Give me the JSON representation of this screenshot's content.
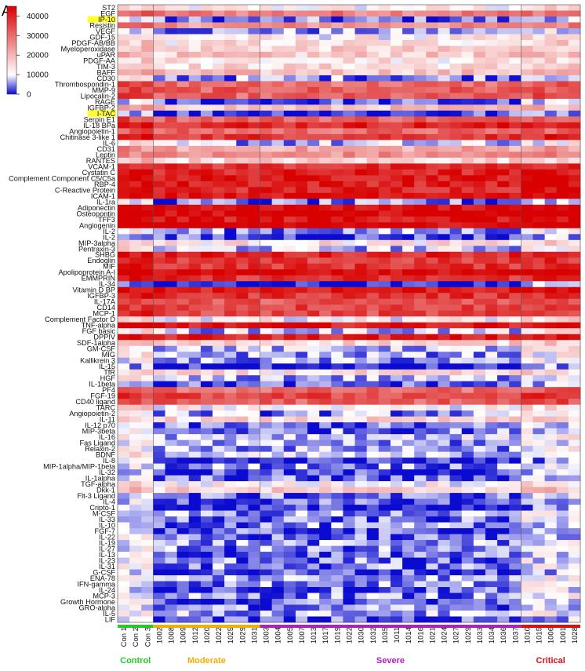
{
  "panel_label": "A",
  "chart_data": {
    "type": "heatmap",
    "title": "",
    "xlabel": "",
    "ylabel": "",
    "colorbar": {
      "ticks": [
        0,
        10000,
        20000,
        30000,
        40000
      ],
      "tick_labels": [
        "0",
        "10000",
        "20000",
        "30000",
        "40000"
      ],
      "range": [
        0,
        45000
      ],
      "colors": {
        "low": "#0a0ad0",
        "mid": "#ffffff",
        "high": "#d80000"
      }
    },
    "rows": [
      "ST2",
      "EGF",
      "IP-10",
      "Resistin",
      "VEGF",
      "GDF-15",
      "PDGF-AB/BB",
      "Myeloperoxidase",
      "uPAR",
      "PDGF-AA",
      "TIM-3",
      "BAFF",
      "CD30",
      "Thrombospondin-1",
      "MMP-9",
      "Lipocalin-2",
      "RAGE",
      "IGFBP-2",
      "I-TAC",
      "Serpin E1",
      "IL-18 BPa",
      "Angiopoietin-1",
      "Chitinase 3-like 1",
      "IL-6",
      "CD31",
      "Leptin",
      "RANTES",
      "VCAM-1",
      "Cystatin C",
      "Complement Component C5/C5a",
      "RBP-4",
      "C-Reactive Protein",
      "ICAM-1",
      "IL-1ra",
      "Adiponectin",
      "Osteopontin",
      "TFF3",
      "Angiogenin",
      "IL-2",
      "IL-2",
      "MIP-3alpha",
      "Pentraxin-3",
      "SHBG",
      "Endoglin",
      "MIF",
      "Apolipoprotein A-I",
      "EMMPRIN",
      "IL-34",
      "Vitamin D BP",
      "IGFBP-3",
      "IL-17A",
      "CD14",
      "MCP-1",
      "Complement Factor D",
      "TNF-alpha",
      "FGF basic",
      "DPPIV",
      "SDF-1alpha",
      "GM-CSF",
      "MIG",
      "Kallikrein 3",
      "IL-15",
      "TfR",
      "HGF",
      "IL-1beta",
      "PF4",
      "FGF-19",
      "CD40 ligand",
      "TARC",
      "Angiopoietin-2",
      "IL-11",
      "IL-12 p70",
      "MIP-3beta",
      "IL-16",
      "Fas Ligand",
      "Relaxin-2",
      "BDNF",
      "IL-8",
      "MIP-1alpha/MIP-1beta",
      "IL-32",
      "IL-1alpha",
      "TGF-alpha",
      "Dkk-1",
      "Flt-3 Ligand",
      "IL-4",
      "Cripto-1",
      "M-CSF",
      "IL-33",
      "IL-10",
      "FGF-7",
      "IL-22",
      "IL-19",
      "IL-27",
      "IL-13",
      "IL-23",
      "IL-31",
      "G-CSF",
      "ENA-78",
      "IFN-gamma",
      "IL-24",
      "MCP-3",
      "Growth Hormone",
      "GRO-alpha",
      "IL-5",
      "LIF"
    ],
    "highlighted_rows": [
      "IP-10",
      "I-TAC"
    ],
    "columns": [
      "Con 1",
      "Con 2",
      "Con 3",
      "1002",
      "1008",
      "1009",
      "1012",
      "1020",
      "1022",
      "1025",
      "1029",
      "1031",
      "1003",
      "1004",
      "1005",
      "1007",
      "1013",
      "1017",
      "1019",
      "1022",
      "1030",
      "1032",
      "1035",
      "1011",
      "1014",
      "1016",
      "1021",
      "1024",
      "1027",
      "1029",
      "1033",
      "1034",
      "1036",
      "1037",
      "1010",
      "1015",
      "1006",
      "1001",
      "1028"
    ],
    "groups": [
      {
        "name": "Control",
        "start": 0,
        "end": 2,
        "color": "#22cc22"
      },
      {
        "name": "Moderate",
        "start": 3,
        "end": 11,
        "color": "#f0b000"
      },
      {
        "name": "Severe",
        "start": 12,
        "end": 33,
        "color": "#b020c0"
      },
      {
        "name": "Critical",
        "start": 34,
        "end": 38,
        "color": "#dd1010"
      }
    ],
    "row_levels": [
      12000,
      28000,
      6000,
      25000,
      8000,
      12000,
      14000,
      16000,
      17000,
      14000,
      15000,
      18000,
      8000,
      30000,
      32000,
      31000,
      5000,
      18000,
      5000,
      32000,
      40000,
      30000,
      38000,
      9000,
      22000,
      25000,
      16000,
      38000,
      40000,
      42000,
      41000,
      40000,
      44000,
      6000,
      44000,
      45000,
      42000,
      45000,
      8000,
      5000,
      14000,
      10000,
      40000,
      36000,
      38000,
      45000,
      38000,
      2000,
      42000,
      38000,
      33000,
      36000,
      35000,
      12000,
      42000,
      10000,
      40000,
      16000,
      10000,
      9000,
      8000,
      2000,
      14000,
      9000,
      5000,
      30000,
      35000,
      32000,
      12000,
      8000,
      15000,
      6000,
      7000,
      11000,
      8000,
      9000,
      10000,
      3000,
      8000,
      4000,
      6000,
      12000,
      16000,
      6000,
      5000,
      3000,
      8000,
      6000,
      7000,
      5000,
      6000,
      8000,
      7000,
      6000,
      7000,
      7000,
      5000,
      9000,
      8000,
      6000,
      8000,
      6000,
      7000,
      9000,
      5000
    ]
  }
}
